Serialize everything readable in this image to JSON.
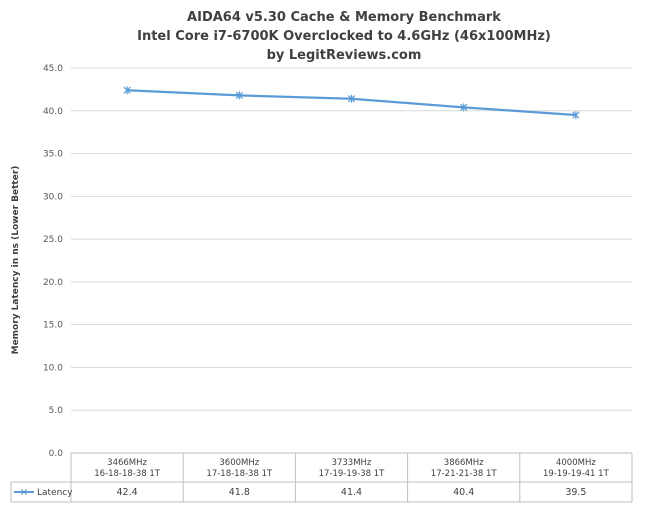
{
  "chart_data": {
    "type": "line",
    "title_lines": [
      "AIDA64 v5.30 Cache & Memory Benchmark",
      "Intel Core i7-6700K Overclocked to 4.6GHz (46x100MHz)",
      "by LegitReviews.com"
    ],
    "ylabel": "Memory Latency in ns (Lower Better)",
    "ylim": [
      0,
      45
    ],
    "yticks": [
      "0.0",
      "5.0",
      "10.0",
      "15.0",
      "20.0",
      "25.0",
      "30.0",
      "35.0",
      "40.0",
      "45.0"
    ],
    "grid": true,
    "categories": [
      [
        "3466MHz",
        "16-18-18-38 1T"
      ],
      [
        "3600MHz",
        "17-18-18-38 1T"
      ],
      [
        "3733MHz",
        "17-19-19-38 1T"
      ],
      [
        "3866MHz",
        "17-21-21-38 1T"
      ],
      [
        "4000MHz",
        "19-19-19-41 1T"
      ]
    ],
    "series": [
      {
        "name": "Latency",
        "values": [
          42.4,
          41.8,
          41.4,
          40.4,
          39.5
        ],
        "value_labels": [
          "42.4",
          "41.8",
          "41.4",
          "40.4",
          "39.5"
        ],
        "color": "#5b9bd5",
        "marker": "asterisk"
      }
    ],
    "legend_placement": "data-table"
  }
}
